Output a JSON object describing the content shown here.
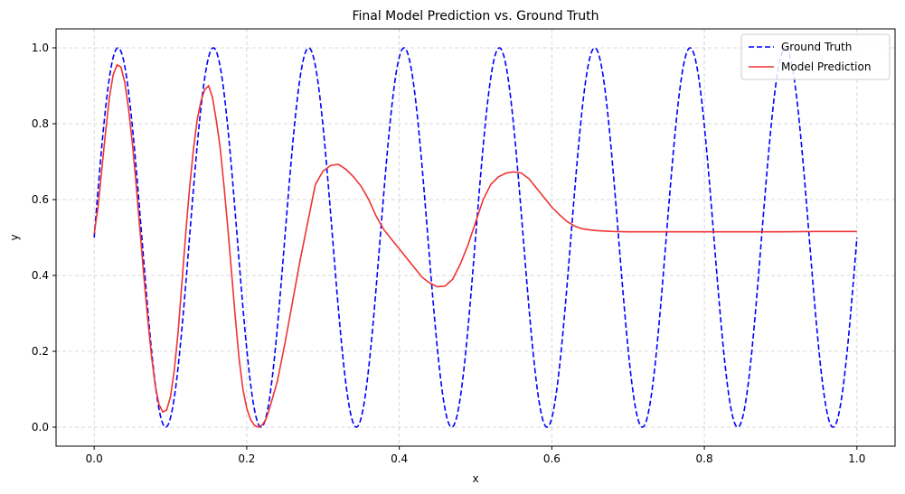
{
  "chart_data": {
    "type": "line",
    "title": "Final Model Prediction vs. Ground Truth",
    "xlabel": "x",
    "ylabel": "y",
    "xlim": [
      -0.05,
      1.05
    ],
    "ylim": [
      -0.05,
      1.05
    ],
    "xticks": [
      0.0,
      0.2,
      0.4,
      0.6,
      0.8,
      1.0
    ],
    "xtick_labels": [
      "0.0",
      "0.2",
      "0.4",
      "0.6",
      "0.8",
      "1.0"
    ],
    "yticks": [
      0.0,
      0.2,
      0.4,
      0.6,
      0.8,
      1.0
    ],
    "ytick_labels": [
      "0.0",
      "0.2",
      "0.4",
      "0.6",
      "0.8",
      "1.0"
    ],
    "grid": true,
    "legend_position": "top-right",
    "series": [
      {
        "name": "Ground Truth",
        "color": "#0000ff",
        "style": "dashed",
        "function": "0.5 + 0.5*sin(16*pi*x)",
        "x_range": [
          0,
          1
        ]
      },
      {
        "name": "Model Prediction",
        "color": "#ee3333",
        "style": "solid",
        "points": [
          [
            0.0,
            0.51
          ],
          [
            0.005,
            0.58
          ],
          [
            0.01,
            0.68
          ],
          [
            0.015,
            0.78
          ],
          [
            0.02,
            0.87
          ],
          [
            0.025,
            0.93
          ],
          [
            0.03,
            0.955
          ],
          [
            0.035,
            0.95
          ],
          [
            0.04,
            0.91
          ],
          [
            0.045,
            0.84
          ],
          [
            0.05,
            0.75
          ],
          [
            0.055,
            0.64
          ],
          [
            0.06,
            0.52
          ],
          [
            0.065,
            0.4
          ],
          [
            0.07,
            0.29
          ],
          [
            0.075,
            0.19
          ],
          [
            0.08,
            0.11
          ],
          [
            0.085,
            0.06
          ],
          [
            0.09,
            0.04
          ],
          [
            0.095,
            0.045
          ],
          [
            0.1,
            0.08
          ],
          [
            0.105,
            0.15
          ],
          [
            0.11,
            0.25
          ],
          [
            0.115,
            0.38
          ],
          [
            0.12,
            0.51
          ],
          [
            0.125,
            0.63
          ],
          [
            0.13,
            0.73
          ],
          [
            0.135,
            0.81
          ],
          [
            0.14,
            0.86
          ],
          [
            0.145,
            0.89
          ],
          [
            0.15,
            0.9
          ],
          [
            0.155,
            0.87
          ],
          [
            0.16,
            0.81
          ],
          [
            0.165,
            0.74
          ],
          [
            0.17,
            0.64
          ],
          [
            0.175,
            0.53
          ],
          [
            0.18,
            0.41
          ],
          [
            0.185,
            0.29
          ],
          [
            0.19,
            0.18
          ],
          [
            0.195,
            0.1
          ],
          [
            0.2,
            0.05
          ],
          [
            0.205,
            0.02
          ],
          [
            0.21,
            0.005
          ],
          [
            0.215,
            0.0
          ],
          [
            0.22,
            0.005
          ],
          [
            0.225,
            0.02
          ],
          [
            0.23,
            0.05
          ],
          [
            0.24,
            0.12
          ],
          [
            0.25,
            0.22
          ],
          [
            0.26,
            0.33
          ],
          [
            0.27,
            0.44
          ],
          [
            0.28,
            0.54
          ],
          [
            0.29,
            0.64
          ],
          [
            0.3,
            0.675
          ],
          [
            0.31,
            0.69
          ],
          [
            0.32,
            0.693
          ],
          [
            0.33,
            0.68
          ],
          [
            0.34,
            0.66
          ],
          [
            0.35,
            0.635
          ],
          [
            0.36,
            0.6
          ],
          [
            0.37,
            0.555
          ],
          [
            0.38,
            0.52
          ],
          [
            0.39,
            0.495
          ],
          [
            0.4,
            0.47
          ],
          [
            0.41,
            0.445
          ],
          [
            0.42,
            0.42
          ],
          [
            0.43,
            0.395
          ],
          [
            0.44,
            0.38
          ],
          [
            0.45,
            0.37
          ],
          [
            0.46,
            0.372
          ],
          [
            0.47,
            0.39
          ],
          [
            0.48,
            0.43
          ],
          [
            0.49,
            0.48
          ],
          [
            0.5,
            0.54
          ],
          [
            0.51,
            0.6
          ],
          [
            0.52,
            0.64
          ],
          [
            0.53,
            0.66
          ],
          [
            0.54,
            0.67
          ],
          [
            0.55,
            0.673
          ],
          [
            0.56,
            0.67
          ],
          [
            0.57,
            0.655
          ],
          [
            0.58,
            0.63
          ],
          [
            0.59,
            0.605
          ],
          [
            0.6,
            0.58
          ],
          [
            0.61,
            0.56
          ],
          [
            0.62,
            0.542
          ],
          [
            0.63,
            0.53
          ],
          [
            0.64,
            0.523
          ],
          [
            0.65,
            0.52
          ],
          [
            0.66,
            0.518
          ],
          [
            0.68,
            0.516
          ],
          [
            0.7,
            0.515
          ],
          [
            0.75,
            0.515
          ],
          [
            0.8,
            0.515
          ],
          [
            0.85,
            0.515
          ],
          [
            0.9,
            0.515
          ],
          [
            0.95,
            0.516
          ],
          [
            1.0,
            0.516
          ]
        ]
      }
    ]
  }
}
